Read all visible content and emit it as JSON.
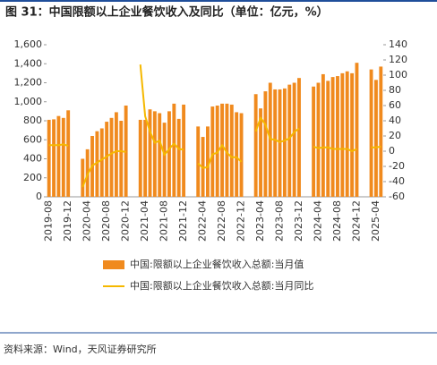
{
  "chart_data": {
    "type": "bar-line",
    "title": "图 31：中国限额以上企业餐饮收入及同比（单位：亿元，%）",
    "source": "资料来源：Wind，天风证券研究所",
    "categories": [
      "2019-08",
      null,
      null,
      null,
      "2019-12",
      null,
      null,
      null,
      "2020-04",
      null,
      null,
      null,
      "2020-08",
      null,
      null,
      null,
      "2020-12",
      null,
      null,
      null,
      "2021-04",
      null,
      null,
      null,
      "2021-08",
      null,
      null,
      null,
      "2021-12",
      null,
      null,
      null,
      "2022-04",
      null,
      null,
      null,
      "2022-08",
      null,
      null,
      null,
      "2022-12",
      null,
      null,
      null,
      "2023-04",
      null,
      null,
      null,
      "2023-08",
      null,
      null,
      null,
      "2023-12",
      null,
      null,
      null,
      "2024-04",
      null,
      null,
      null,
      "2024-08",
      null,
      null,
      null,
      "2024-12",
      null,
      null,
      null,
      "2025-04",
      null
    ],
    "series": [
      {
        "name": "中国:限额以上企业餐饮收入总额:当月值",
        "color": "#F08A1E",
        "type": "bar",
        "values": [
          810,
          815,
          850,
          830,
          910,
          null,
          null,
          400,
          500,
          640,
          690,
          720,
          790,
          830,
          890,
          800,
          960,
          null,
          null,
          810,
          810,
          920,
          900,
          880,
          780,
          900,
          980,
          820,
          970,
          null,
          null,
          740,
          630,
          740,
          950,
          960,
          980,
          980,
          970,
          890,
          880,
          null,
          null,
          1080,
          930,
          1110,
          1200,
          1130,
          1130,
          1140,
          1180,
          1200,
          1250,
          null,
          null,
          1160,
          1200,
          1290,
          1220,
          1260,
          1270,
          1300,
          1320,
          1300,
          1410,
          null,
          null,
          1340,
          1230,
          1370
        ]
      },
      {
        "name": "中国:限额以上企业餐饮收入总额:当月同比",
        "color": "#F5B800",
        "type": "line",
        "axis": "y2",
        "values": [
          8,
          8,
          8,
          9,
          7,
          null,
          null,
          -47,
          -31,
          -19,
          -15,
          -11,
          -7,
          -3,
          0,
          0,
          -1,
          null,
          null,
          114,
          46,
          26,
          11,
          14,
          -5,
          3,
          10,
          3,
          2,
          null,
          null,
          -16,
          -22,
          -21,
          -4,
          -2,
          8,
          -2,
          -8,
          -8,
          -14,
          null,
          null,
          26,
          44,
          35,
          16,
          15,
          12,
          14,
          17,
          25,
          30,
          null,
          null,
          6,
          4,
          5,
          5,
          3,
          3,
          3,
          3,
          0,
          3,
          null,
          null,
          5,
          5,
          6
        ]
      }
    ],
    "ylim": [
      0,
      1600
    ],
    "yticks": [
      0,
      {
        "value": 200,
        "label": "200"
      },
      {
        "value": 400,
        "label": "400"
      },
      600,
      800,
      {
        "value": 1000,
        "label": "1,000"
      },
      {
        "value": 1200,
        "label": "1,200"
      },
      {
        "value": 1400,
        "label": "1,400"
      },
      {
        "value": 1600,
        "label": "1,600"
      }
    ],
    "y2lim": [
      -60,
      140
    ],
    "y2ticks": [
      -60,
      -40,
      -20,
      0,
      20,
      40,
      60,
      80,
      100,
      120,
      140
    ]
  }
}
